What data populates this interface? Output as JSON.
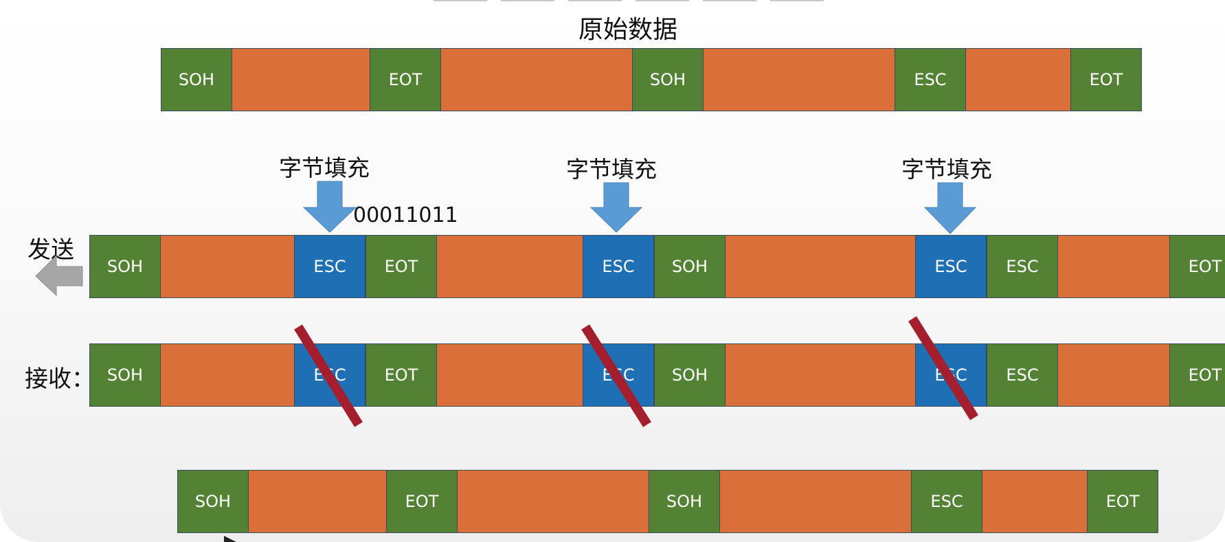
{
  "title": "原始数据",
  "stuff_label": "字节填充",
  "esc_bits": "00011011",
  "send_label": "发送",
  "recv_label": "接收：",
  "segment_labels": {
    "soh": "SOH",
    "eot": "EOT",
    "esc": "ESC"
  },
  "colors": {
    "control": "#548235",
    "stuffed_esc": "#1f6fb4",
    "data": "#d9703a",
    "arrow": "#5b9bd5",
    "strike": "#a31f2e",
    "send_arrow": "#a6a6a6"
  },
  "original_sequence": [
    "SOH",
    "data",
    "EOT",
    "data",
    "SOH",
    "data",
    "ESC",
    "data",
    "EOT"
  ],
  "sent_sequence": [
    "SOH",
    "data",
    "ESC*",
    "EOT",
    "data",
    "ESC*",
    "SOH",
    "data",
    "ESC*",
    "ESC",
    "data",
    "EOT"
  ],
  "received_sequence": [
    "SOH",
    "data",
    "ESC*",
    "EOT",
    "data",
    "ESC*",
    "SOH",
    "data",
    "ESC*",
    "ESC",
    "data",
    "EOT"
  ],
  "restored_sequence": [
    "SOH",
    "data",
    "EOT",
    "data",
    "SOH",
    "data",
    "ESC",
    "data",
    "EOT"
  ]
}
